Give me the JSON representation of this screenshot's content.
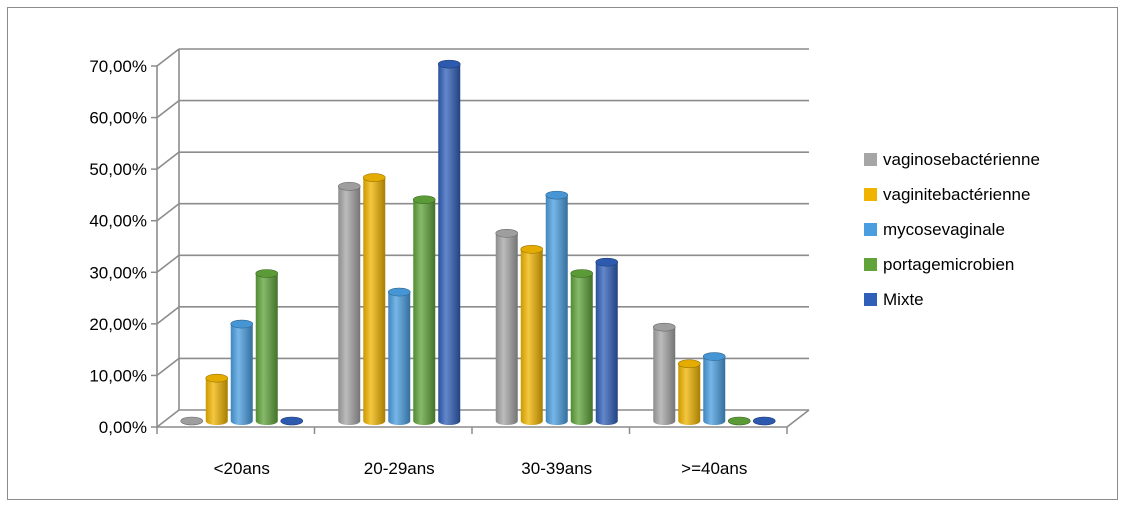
{
  "chart_data": {
    "type": "bar",
    "categories": [
      "<20ans",
      "20-29ans",
      "30-39ans",
      ">=40ans"
    ],
    "series": [
      {
        "name": "vaginosebactérienne",
        "color": "#a6a6a6",
        "values": [
          0.0,
          45.5,
          36.4,
          18.2
        ]
      },
      {
        "name": "vaginitebactérienne",
        "color": "#f0b400",
        "values": [
          8.3,
          47.2,
          33.3,
          11.1
        ]
      },
      {
        "name": "mycosevaginale",
        "color": "#4a9ee0",
        "values": [
          18.8,
          25.0,
          43.8,
          12.5
        ]
      },
      {
        "name": "portagemicrobien",
        "color": "#5fa33a",
        "values": [
          28.6,
          42.9,
          28.6,
          0.0
        ]
      },
      {
        "name": "Mixte",
        "color": "#2f5fb8",
        "values": [
          0.0,
          69.2,
          30.8,
          0.0
        ]
      }
    ],
    "y_ticks": [
      "0,00%",
      "10,00%",
      "20,00%",
      "30,00%",
      "40,00%",
      "50,00%",
      "60,00%",
      "70,00%"
    ],
    "ylim": [
      0,
      70
    ],
    "grid": true,
    "legend_position": "right",
    "title": "",
    "xlabel": "",
    "ylabel": ""
  }
}
